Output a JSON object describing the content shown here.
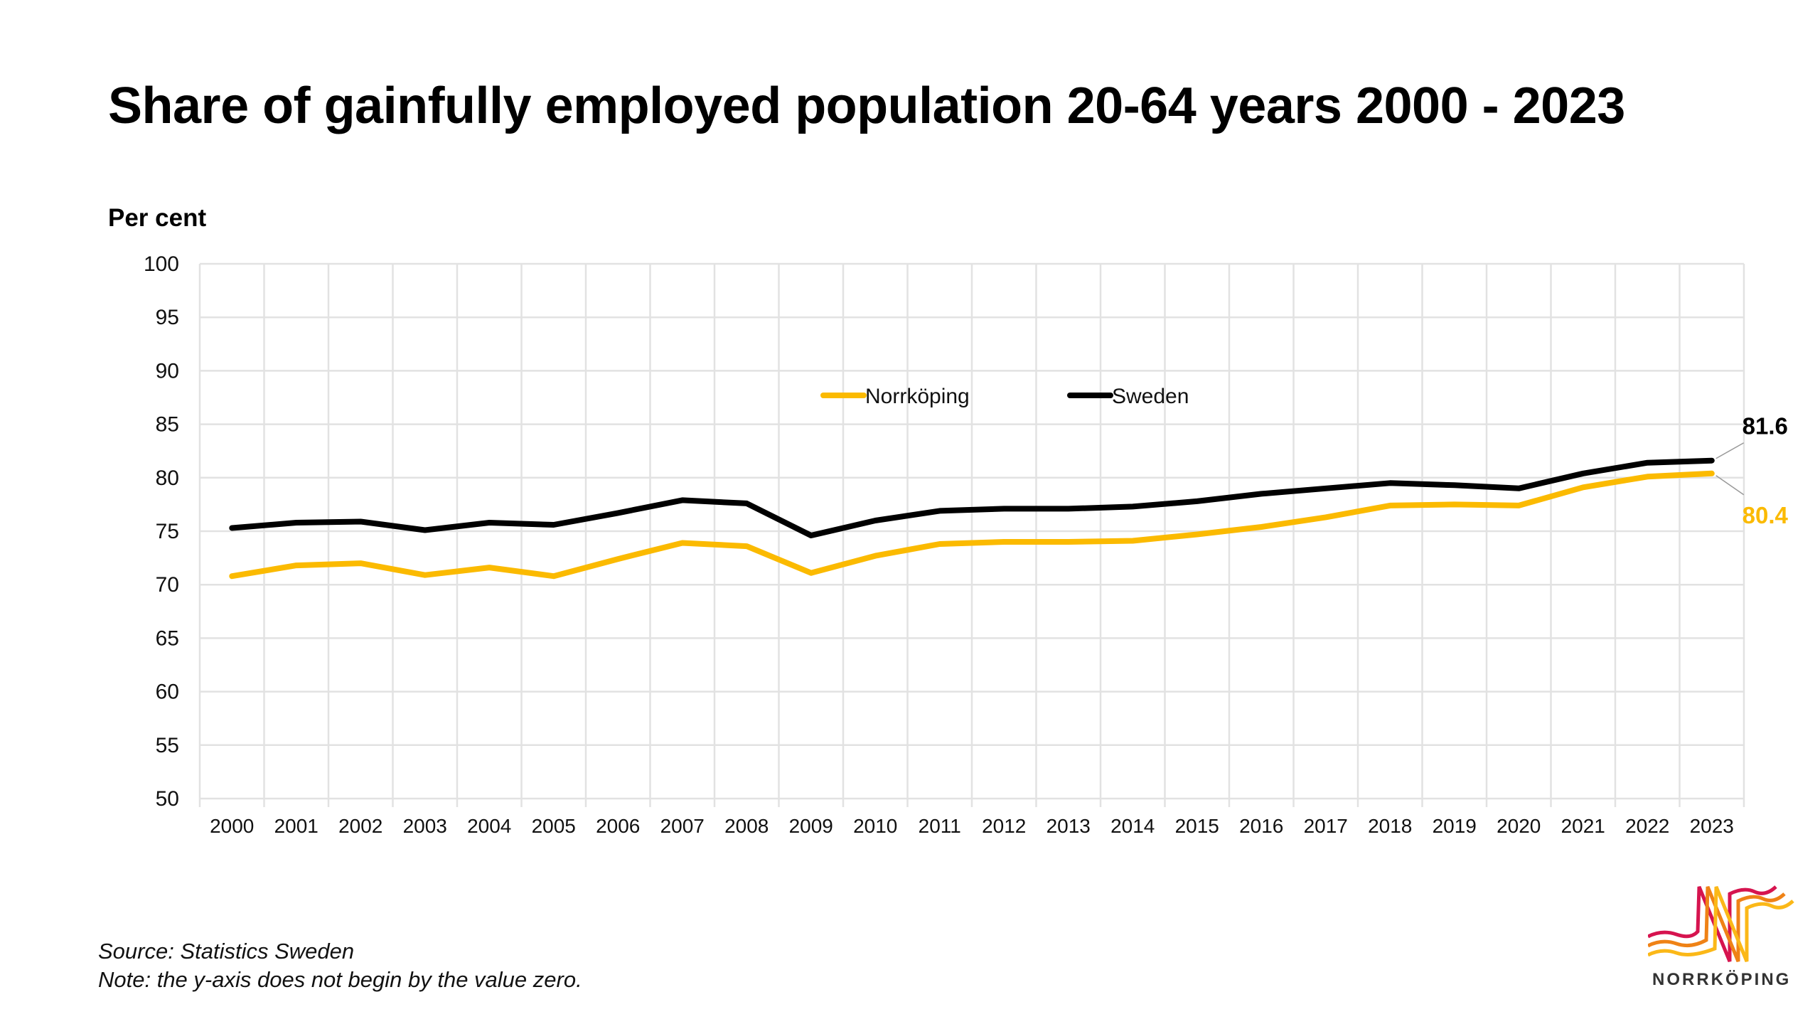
{
  "page": {
    "title": "Share of gainfully employed population 20-64 years 2000 - 2023",
    "source": "Source: Statistics Sweden",
    "note": "Note: the y-axis does not begin by the value zero.",
    "logo_text": "NORRKÖPING",
    "logo_colors": [
      "#d6144f",
      "#ef8216",
      "#fbb818"
    ]
  },
  "chart_data": {
    "type": "line",
    "title": "Share of gainfully employed population 20-64 years 2000 - 2023",
    "xlabel": "",
    "ylabel": "Per cent",
    "ylim": [
      50,
      100
    ],
    "yticks": [
      100,
      95,
      90,
      85,
      80,
      75,
      70,
      65,
      60,
      55,
      50
    ],
    "grid": true,
    "legend_position": "top-center",
    "categories": [
      "2000",
      "2001",
      "2002",
      "2003",
      "2004",
      "2005",
      "2006",
      "2007",
      "2008",
      "2009",
      "2010",
      "2011",
      "2012",
      "2013",
      "2014",
      "2015",
      "2016",
      "2017",
      "2018",
      "2019",
      "2020",
      "2021",
      "2022",
      "2023"
    ],
    "series": [
      {
        "name": "Norrköping",
        "color": "#fbba00",
        "values": [
          70.8,
          71.8,
          72.0,
          70.9,
          71.6,
          70.8,
          72.4,
          73.9,
          73.6,
          71.1,
          72.7,
          73.8,
          74.0,
          74.0,
          74.1,
          74.7,
          75.4,
          76.3,
          77.4,
          77.5,
          77.4,
          79.1,
          80.1,
          80.4
        ],
        "end_label": "80.4"
      },
      {
        "name": "Sweden",
        "color": "#000000",
        "values": [
          75.3,
          75.8,
          75.9,
          75.1,
          75.8,
          75.6,
          76.7,
          77.9,
          77.6,
          74.6,
          76.0,
          76.9,
          77.1,
          77.1,
          77.3,
          77.8,
          78.5,
          79.0,
          79.5,
          79.3,
          79.0,
          80.4,
          81.4,
          81.6
        ],
        "end_label": "81.6"
      }
    ]
  }
}
